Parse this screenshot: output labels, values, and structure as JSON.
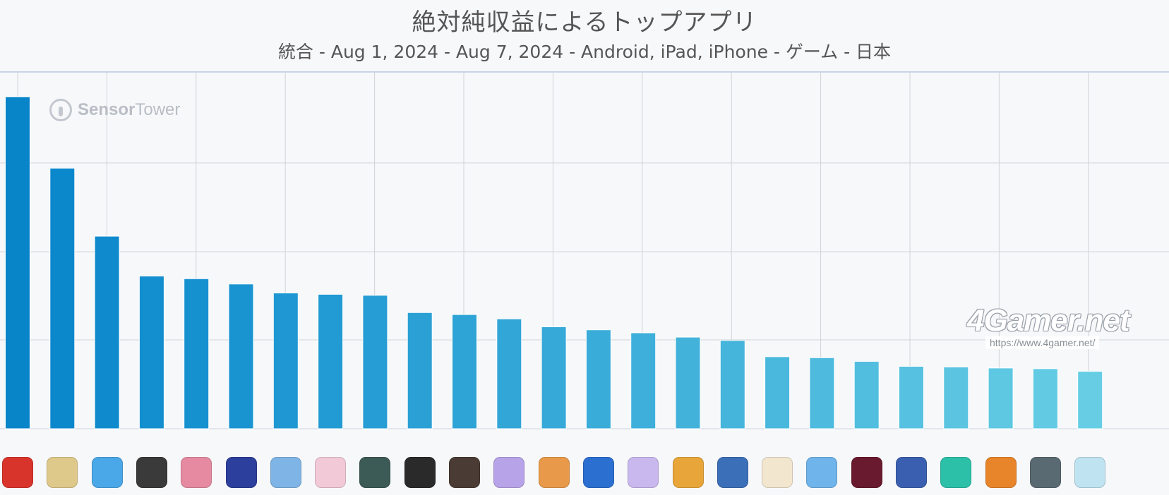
{
  "chart_data": {
    "type": "bar",
    "title": "絶対純収益によるトップアプリ",
    "subtitle": "統合 - Aug 1, 2024 - Aug 7, 2024 - Android, iPad, iPhone - ゲーム - 日本",
    "categories": [
      "",
      "",
      "",
      "",
      "",
      "",
      "",
      "",
      "",
      "",
      "",
      "",
      "",
      "",
      "",
      "",
      "",
      "",
      "",
      "",
      "",
      "",
      "",
      "",
      ""
    ],
    "values": [
      100,
      78.5,
      58,
      46,
      45.2,
      43.6,
      40.9,
      40.5,
      40.2,
      35,
      34.4,
      33.1,
      30.7,
      29.8,
      28.9,
      27.6,
      26.6,
      21.7,
      21.4,
      20.3,
      18.8,
      18.6,
      18.3,
      18.1,
      17.3
    ],
    "ylim": [
      0,
      107.5
    ],
    "grid": true,
    "legend": "none"
  },
  "watermarks": {
    "sensor_tower": "Sensor Tower",
    "sensor_bold": "Sensor",
    "sensor_rest": "Tower",
    "gamer": "4Gamer.net",
    "gamer_url": "https://www.4gamer.net/"
  },
  "bar_colors": [
    "#0884c9",
    "#0b87cb",
    "#0f8bcd",
    "#138ece",
    "#1691d0",
    "#1a94d1",
    "#1e97d2",
    "#229ad3",
    "#269dd4",
    "#2aa0d5",
    "#2ea3d6",
    "#32a6d7",
    "#36a9d8",
    "#3aacd9",
    "#3eafda",
    "#42b2db",
    "#46b5dc",
    "#4ab8dd",
    "#4ebbde",
    "#52bedf",
    "#56c1e0",
    "#5ac4e1",
    "#5ec7e2",
    "#62cae3",
    "#66cde4"
  ],
  "icon_colors": [
    "#d9342b",
    "#dfc98a",
    "#4aa7e8",
    "#3a3a3a",
    "#e58aa0",
    "#2c3f9c",
    "#7fb4e6",
    "#f2c9d6",
    "#3c5a56",
    "#2a2a2a",
    "#4a3b34",
    "#b7a3e8",
    "#e89a4a",
    "#2b6fd1",
    "#c9b8ee",
    "#e8a63a",
    "#3b6fb8",
    "#f3e6cf",
    "#6fb4ea",
    "#6a1a2e",
    "#3b5fb0",
    "#2cc0a8",
    "#e8842a",
    "#5a6a72",
    "#bfe3f0"
  ]
}
